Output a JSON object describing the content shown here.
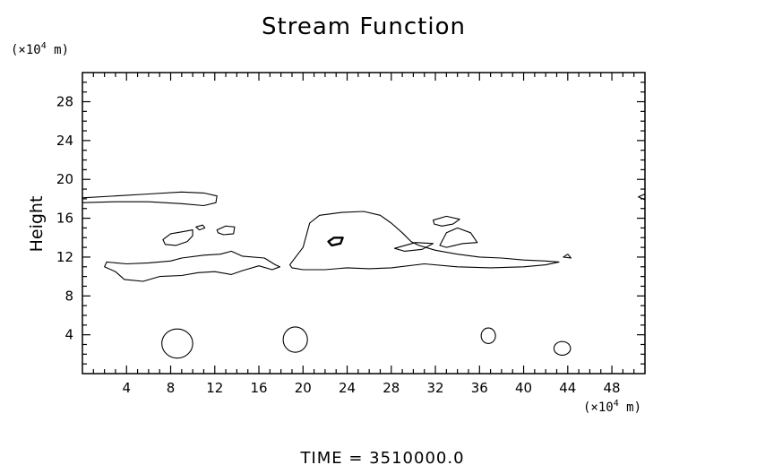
{
  "chart_data": {
    "type": "contour",
    "title": "Stream Function",
    "ylabel": "Height",
    "xlabel": "",
    "x_unit_prefix": "(×10",
    "x_unit_exp": "4",
    "x_unit_suffix": " m)",
    "y_unit_prefix": "(×10",
    "y_unit_exp": "4",
    "y_unit_suffix": " m)",
    "xlim": [
      0,
      51
    ],
    "ylim": [
      0,
      31
    ],
    "xticks": [
      4,
      8,
      12,
      16,
      20,
      24,
      28,
      32,
      36,
      40,
      44,
      48
    ],
    "yticks": [
      4,
      8,
      12,
      16,
      20,
      24,
      28
    ],
    "x_minor_step": 1,
    "y_minor_step": 1,
    "grid": false,
    "line_color": "#000000",
    "contours": [
      {
        "label": "upper-left band",
        "points": [
          [
            0,
            18.1
          ],
          [
            3,
            18.3
          ],
          [
            6,
            18.5
          ],
          [
            9,
            18.7
          ],
          [
            11,
            18.6
          ],
          [
            12.2,
            18.3
          ],
          [
            12.1,
            17.6
          ],
          [
            11,
            17.3
          ],
          [
            9,
            17.5
          ],
          [
            6,
            17.7
          ],
          [
            3,
            17.7
          ],
          [
            0,
            17.6
          ]
        ]
      },
      {
        "label": "main lower band",
        "points": [
          [
            2.2,
            11.5
          ],
          [
            4,
            11.3
          ],
          [
            6,
            11.4
          ],
          [
            8,
            11.6
          ],
          [
            9,
            11.9
          ],
          [
            11,
            12.2
          ],
          [
            12.5,
            12.3
          ],
          [
            13.5,
            12.6
          ],
          [
            14.5,
            12.1
          ],
          [
            16.5,
            11.9
          ],
          [
            17.5,
            11.2
          ],
          [
            17.9,
            11.0
          ],
          [
            17.2,
            10.7
          ],
          [
            16,
            11.1
          ],
          [
            14.5,
            10.6
          ],
          [
            13.5,
            10.2
          ],
          [
            12,
            10.5
          ],
          [
            10.5,
            10.4
          ],
          [
            9,
            10.1
          ],
          [
            7,
            10.0
          ],
          [
            5.5,
            9.5
          ],
          [
            3.8,
            9.7
          ],
          [
            3,
            10.5
          ],
          [
            2,
            11.0
          ]
        ]
      },
      {
        "label": "small blob 1",
        "points": [
          [
            7.3,
            13.8
          ],
          [
            8,
            14.4
          ],
          [
            9,
            14.6
          ],
          [
            10,
            14.8
          ],
          [
            10,
            14.2
          ],
          [
            9.5,
            13.6
          ],
          [
            8.5,
            13.2
          ],
          [
            7.5,
            13.3
          ]
        ]
      },
      {
        "label": "small blob 2",
        "points": [
          [
            10.3,
            15.1
          ],
          [
            10.9,
            15.3
          ],
          [
            11.1,
            15.0
          ],
          [
            10.6,
            14.8
          ]
        ]
      },
      {
        "label": "small blob 3",
        "points": [
          [
            12.2,
            14.8
          ],
          [
            13,
            15.2
          ],
          [
            13.8,
            15.1
          ],
          [
            13.7,
            14.4
          ],
          [
            12.8,
            14.3
          ],
          [
            12.3,
            14.5
          ]
        ]
      },
      {
        "label": "central cell",
        "points": [
          [
            18.8,
            11.2
          ],
          [
            20,
            13.0
          ],
          [
            20.6,
            15.5
          ],
          [
            21.5,
            16.3
          ],
          [
            23.5,
            16.6
          ],
          [
            25.5,
            16.7
          ],
          [
            27,
            16.3
          ],
          [
            28,
            15.5
          ],
          [
            29,
            14.5
          ],
          [
            29.8,
            13.6
          ],
          [
            30.5,
            13.2
          ],
          [
            32,
            12.7
          ],
          [
            34,
            12.3
          ],
          [
            36,
            12.0
          ],
          [
            38,
            11.9
          ],
          [
            40,
            11.7
          ],
          [
            42,
            11.6
          ],
          [
            43.2,
            11.5
          ],
          [
            42,
            11.2
          ],
          [
            40,
            11.0
          ],
          [
            37,
            10.9
          ],
          [
            34,
            11.0
          ],
          [
            31,
            11.3
          ],
          [
            28,
            10.9
          ],
          [
            26,
            10.8
          ],
          [
            24,
            10.9
          ],
          [
            22,
            10.7
          ],
          [
            20,
            10.7
          ],
          [
            19,
            10.9
          ]
        ]
      },
      {
        "label": "cell core (thick)",
        "thick": true,
        "points": [
          [
            22.3,
            13.6
          ],
          [
            22.8,
            14.0
          ],
          [
            23.6,
            14.0
          ],
          [
            23.4,
            13.4
          ],
          [
            22.6,
            13.2
          ]
        ]
      },
      {
        "label": "right blob 1",
        "points": [
          [
            31.8,
            15.8
          ],
          [
            33,
            16.2
          ],
          [
            34.2,
            15.9
          ],
          [
            33.6,
            15.4
          ],
          [
            32.6,
            15.2
          ],
          [
            31.9,
            15.4
          ]
        ]
      },
      {
        "label": "right blob 2",
        "points": [
          [
            32.4,
            13.2
          ],
          [
            33,
            14.5
          ],
          [
            34,
            15.0
          ],
          [
            35.2,
            14.5
          ],
          [
            35.8,
            13.5
          ],
          [
            34.5,
            13.4
          ],
          [
            33,
            13.0
          ]
        ]
      },
      {
        "label": "right blob 3",
        "points": [
          [
            30.8,
            12.8
          ],
          [
            31.8,
            13.4
          ],
          [
            30.2,
            13.5
          ],
          [
            28.3,
            12.9
          ],
          [
            29.2,
            12.6
          ]
        ]
      },
      {
        "label": "far-right tick",
        "points": [
          [
            43.6,
            12.0
          ],
          [
            44.0,
            12.3
          ],
          [
            44.3,
            11.9
          ]
        ]
      },
      {
        "label": "edge blob",
        "points": [
          [
            50.4,
            18.2
          ],
          [
            51,
            18.5
          ],
          [
            51,
            17.9
          ]
        ]
      },
      {
        "label": "surface circle 1",
        "cx": 8.6,
        "cy": 3.1,
        "rx": 1.4,
        "ry": 1.5
      },
      {
        "label": "surface circle 2",
        "cx": 19.3,
        "cy": 3.5,
        "rx": 1.1,
        "ry": 1.3
      },
      {
        "label": "surface circle 3",
        "cx": 36.8,
        "cy": 3.9,
        "rx": 0.65,
        "ry": 0.8
      },
      {
        "label": "surface circle 4",
        "cx": 43.5,
        "cy": 2.6,
        "rx": 0.75,
        "ry": 0.7
      }
    ]
  },
  "footer": {
    "time_label": "TIME  =  3510000.0"
  }
}
